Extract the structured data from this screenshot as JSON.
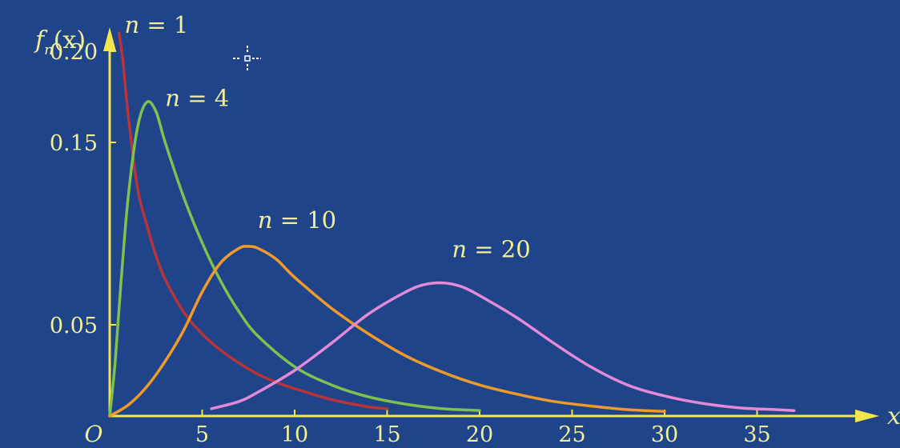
{
  "chart_data": {
    "type": "line",
    "title": "",
    "xlabel": "x",
    "ylabel": "f_n(x)",
    "ylabel_main": "f",
    "ylabel_sub": "n",
    "ylabel_arg": "(x)",
    "origin_label": "O",
    "xlim": [
      0,
      42
    ],
    "ylim": [
      0,
      0.25
    ],
    "x_ticks": [
      5,
      10,
      15,
      20,
      25,
      30,
      35
    ],
    "x_tick_labels": [
      "5",
      "10",
      "15",
      "20",
      "25",
      "30",
      "35"
    ],
    "y_ticks": [
      0.05,
      0.15,
      0.2
    ],
    "y_tick_labels": [
      "0.05",
      "0.15",
      "0.20"
    ],
    "grid": false,
    "legend": "none",
    "series": [
      {
        "name": "n = 1",
        "color": "#b8333a",
        "x": [
          0.5,
          0.7,
          1,
          1.5,
          2,
          2.5,
          3,
          4,
          5,
          6,
          7,
          8,
          9,
          10,
          12,
          14,
          15
        ],
        "y": [
          0.21,
          0.196,
          0.165,
          0.125,
          0.105,
          0.088,
          0.075,
          0.057,
          0.045,
          0.036,
          0.029,
          0.023,
          0.0185,
          0.015,
          0.009,
          0.005,
          0.004
        ]
      },
      {
        "name": "n = 4",
        "color": "#7dc24f",
        "x": [
          0,
          0.3,
          0.6,
          1,
          1.5,
          2,
          2.5,
          3,
          4,
          5,
          6,
          7,
          8,
          10,
          12,
          14,
          16,
          18,
          20
        ],
        "y": [
          0,
          0.03,
          0.072,
          0.12,
          0.158,
          0.172,
          0.167,
          0.15,
          0.12,
          0.095,
          0.074,
          0.057,
          0.044,
          0.027,
          0.017,
          0.0105,
          0.0065,
          0.004,
          0.003
        ]
      },
      {
        "name": "n = 10",
        "color": "#f09a2c",
        "x": [
          0,
          1,
          2,
          3,
          4,
          5,
          6,
          7,
          7.5,
          8,
          9,
          10,
          12,
          14,
          16,
          18,
          20,
          22,
          24,
          26,
          28,
          30
        ],
        "y": [
          0,
          0.006,
          0.016,
          0.03,
          0.047,
          0.068,
          0.084,
          0.092,
          0.093,
          0.092,
          0.086,
          0.076,
          0.059,
          0.045,
          0.033,
          0.024,
          0.017,
          0.012,
          0.008,
          0.0055,
          0.0035,
          0.0025
        ]
      },
      {
        "name": "n = 20",
        "color": "#e48ad6",
        "x": [
          5.5,
          7,
          8,
          10,
          12,
          14,
          16,
          17,
          18,
          19,
          20,
          22,
          24,
          26,
          28,
          30,
          32,
          34,
          36,
          37
        ],
        "y": [
          0.004,
          0.008,
          0.013,
          0.025,
          0.04,
          0.056,
          0.068,
          0.072,
          0.073,
          0.071,
          0.066,
          0.054,
          0.04,
          0.027,
          0.017,
          0.011,
          0.007,
          0.0045,
          0.0035,
          0.003
        ]
      }
    ],
    "annotations": [
      {
        "text": "n = 1",
        "x": 0.8,
        "y": 0.21
      },
      {
        "text": "n = 4",
        "x": 3.0,
        "y": 0.17
      },
      {
        "text": "n = 10",
        "x": 8.0,
        "y": 0.103
      },
      {
        "text": "n = 20",
        "x": 18.5,
        "y": 0.087
      }
    ],
    "colors": {
      "axis": "#f2e64a",
      "text": "#f2ef9a",
      "background": "#1f4489"
    }
  },
  "cursor_icon": "crosshair-cursor-icon"
}
